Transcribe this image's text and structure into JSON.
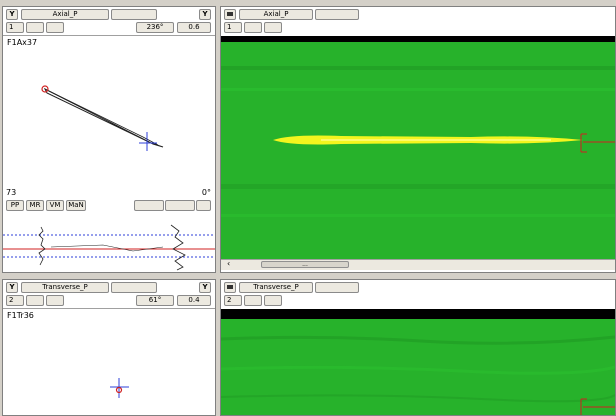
{
  "axial_left": {
    "toggle": "Y",
    "title": "Axial_P",
    "toggle2": "Y",
    "index": "1",
    "angle": "236°",
    "gain": "0.6",
    "label": "F1Ax37",
    "count": "73",
    "angle_reading": "0°",
    "modes": [
      "PP",
      "MR",
      "VM",
      "MaN"
    ]
  },
  "axial_right": {
    "title": "Axial_P",
    "index": "1",
    "scroll_arrow": "‹",
    "scroll_thumb": "..."
  },
  "transverse_left": {
    "toggle": "Y",
    "title": "Transverse_P",
    "toggle2": "Y",
    "index": "2",
    "angle": "61°",
    "gain": "0.4",
    "label": "F1Tr36"
  },
  "transverse_right": {
    "title": "Transverse_P",
    "index": "2"
  },
  "colors": {
    "scan_green": "#27b22b",
    "signal_yellow": "#f3f51e",
    "marker_red": "#d02020",
    "trace_blue": "#2c3fd8"
  }
}
